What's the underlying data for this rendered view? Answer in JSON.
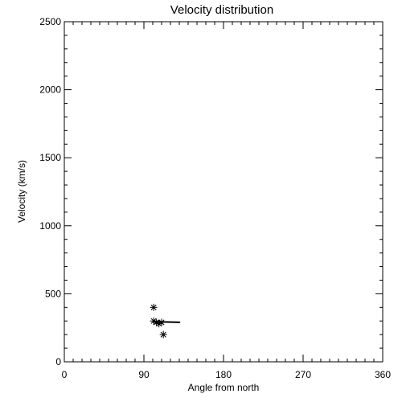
{
  "chart_data": {
    "type": "scatter",
    "title": "Velocity distribution",
    "xlabel": "Angle from north",
    "ylabel": "Velocity (km/s)",
    "xlim": [
      0,
      360
    ],
    "ylim": [
      0,
      2500
    ],
    "x_ticks": [
      0,
      90,
      180,
      270,
      360
    ],
    "y_ticks": [
      0,
      500,
      1000,
      1500,
      2000,
      2500
    ],
    "x_minor_step": 10,
    "y_minor_step": 100,
    "grid": false,
    "marker": "asterisk",
    "points": [
      {
        "x": 101,
        "y": 400
      },
      {
        "x": 101,
        "y": 300
      },
      {
        "x": 104,
        "y": 290
      },
      {
        "x": 107,
        "y": 280
      },
      {
        "x": 110,
        "y": 290
      },
      {
        "x": 112,
        "y": 200
      }
    ],
    "line": {
      "x": [
        101,
        131
      ],
      "y": [
        295,
        290
      ]
    }
  }
}
